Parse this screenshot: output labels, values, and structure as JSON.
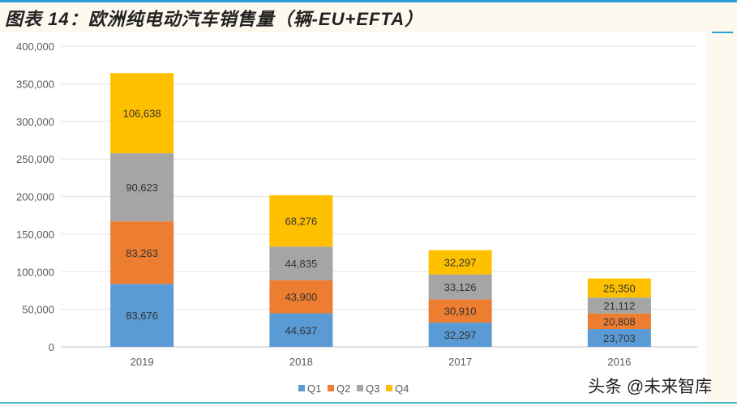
{
  "title": "图表 14：欧洲纯电动汽车销售量（辆-EU+EFTA）",
  "watermark": "头条 @未来智库",
  "chart_data": {
    "type": "bar",
    "stacked": true,
    "title": "图表 14：欧洲纯电动汽车销售量（辆-EU+EFTA）",
    "xlabel": "",
    "ylabel": "",
    "categories": [
      "2019",
      "2018",
      "2017",
      "2016"
    ],
    "series": [
      {
        "name": "Q1",
        "color": "#5b9bd5",
        "values": [
          83676,
          44637,
          32297,
          23703
        ]
      },
      {
        "name": "Q2",
        "color": "#ed7d31",
        "values": [
          83263,
          43900,
          30910,
          20808
        ]
      },
      {
        "name": "Q3",
        "color": "#a5a5a5",
        "values": [
          90623,
          44835,
          33126,
          21112
        ]
      },
      {
        "name": "Q4",
        "color": "#ffc000",
        "values": [
          106638,
          68276,
          32297,
          25350
        ]
      }
    ],
    "data_labels": [
      [
        "83,676",
        "44,637",
        "32,297",
        "23,703"
      ],
      [
        "83,263",
        "43,900",
        "30,910",
        "20,808"
      ],
      [
        "90,623",
        "44,835",
        "33,126",
        "21,112"
      ],
      [
        "106,638",
        "68,276",
        "32,297",
        "25,350"
      ]
    ],
    "yticks": [
      "0",
      "50,000",
      "100,000",
      "150,000",
      "200,000",
      "250,000",
      "300,000",
      "350,000",
      "400,000"
    ],
    "ylim": [
      0,
      400000
    ],
    "grid": true,
    "legend": "bottom"
  }
}
